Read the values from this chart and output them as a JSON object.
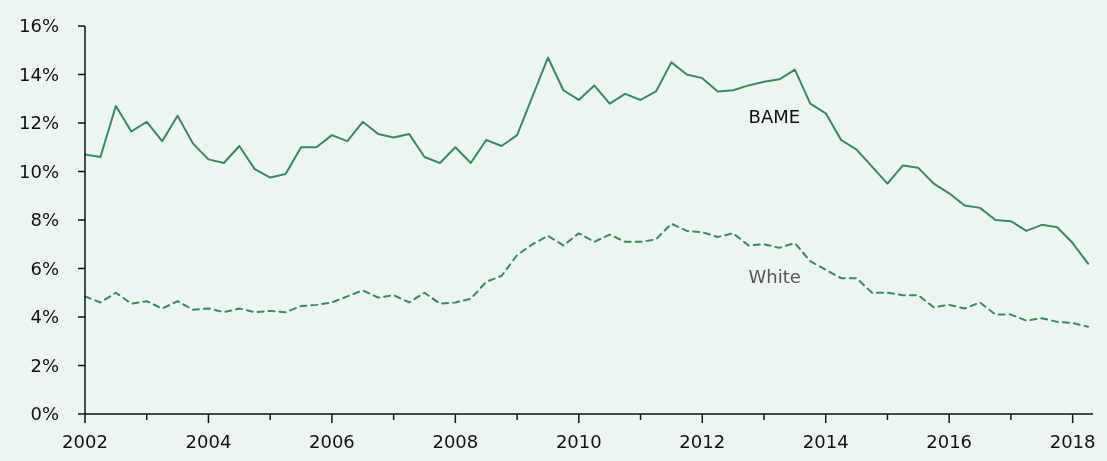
{
  "chart_data": {
    "type": "line",
    "x": [
      2002,
      2002.25,
      2002.5,
      2002.75,
      2003,
      2003.25,
      2003.5,
      2003.75,
      2004,
      2004.25,
      2004.5,
      2004.75,
      2005,
      2005.25,
      2005.5,
      2005.75,
      2006,
      2006.25,
      2006.5,
      2006.75,
      2007,
      2007.25,
      2007.5,
      2007.75,
      2008,
      2008.25,
      2008.5,
      2008.75,
      2009,
      2009.25,
      2009.5,
      2009.75,
      2010,
      2010.25,
      2010.5,
      2010.75,
      2011,
      2011.25,
      2011.5,
      2011.75,
      2012,
      2012.25,
      2012.5,
      2012.75,
      2013,
      2013.25,
      2013.5,
      2013.75,
      2014,
      2014.25,
      2014.5,
      2014.75,
      2015,
      2015.25,
      2015.5,
      2015.75,
      2016,
      2016.25,
      2016.5,
      2016.75,
      2017,
      2017.25,
      2017.5,
      2017.75,
      2018,
      2018.25
    ],
    "series": [
      {
        "name": "BAME",
        "color": "#3a8a5e",
        "line_style": "solid",
        "values": [
          10.7,
          10.6,
          12.7,
          11.65,
          12.05,
          11.25,
          12.3,
          11.15,
          10.5,
          10.35,
          11.05,
          10.1,
          9.75,
          9.9,
          11.0,
          11.0,
          11.5,
          11.25,
          12.05,
          11.55,
          11.4,
          11.55,
          10.6,
          10.35,
          11.0,
          10.35,
          11.3,
          11.05,
          11.5,
          13.1,
          14.7,
          13.35,
          12.95,
          13.55,
          12.8,
          13.2,
          12.95,
          13.3,
          14.5,
          14.0,
          13.85,
          13.3,
          13.35,
          13.55,
          13.7,
          13.8,
          14.2,
          12.8,
          12.4,
          11.3,
          10.9,
          10.2,
          9.5,
          10.25,
          10.15,
          9.5,
          9.1,
          8.6,
          8.5,
          8.0,
          7.95,
          7.55,
          7.8,
          7.7,
          7.05,
          6.2
        ]
      },
      {
        "name": "White",
        "color": "#3a8a5e",
        "line_style": "dashed",
        "values": [
          4.85,
          4.6,
          5.0,
          4.55,
          4.65,
          4.35,
          4.65,
          4.3,
          4.35,
          4.2,
          4.35,
          4.2,
          4.25,
          4.2,
          4.45,
          4.5,
          4.6,
          4.85,
          5.1,
          4.8,
          4.9,
          4.6,
          5.0,
          4.55,
          4.6,
          4.75,
          5.45,
          5.7,
          6.55,
          7.0,
          7.35,
          6.95,
          7.45,
          7.1,
          7.4,
          7.1,
          7.1,
          7.2,
          7.85,
          7.55,
          7.5,
          7.3,
          7.45,
          6.95,
          7.0,
          6.85,
          7.05,
          6.3,
          5.95,
          5.6,
          5.6,
          5.0,
          5.0,
          4.9,
          4.9,
          4.4,
          4.5,
          4.35,
          4.6,
          4.1,
          4.1,
          3.85,
          3.95,
          3.8,
          3.75,
          3.6
        ]
      }
    ],
    "xlim": [
      2002,
      2018.33
    ],
    "xticks": [
      2002,
      {
        "value": 2003,
        "label": null
      },
      2004,
      {
        "value": 2005,
        "label": null
      },
      2006,
      {
        "value": 2007,
        "label": null
      },
      2008,
      {
        "value": 2009,
        "label": null
      },
      2010,
      {
        "value": 2011,
        "label": null
      },
      2012,
      {
        "value": 2013,
        "label": null
      },
      2014,
      {
        "value": 2015,
        "label": null
      },
      2016,
      {
        "value": 2017,
        "label": null
      },
      2018
    ],
    "ylim": [
      0,
      16
    ],
    "yticks": [
      {
        "value": 0,
        "label": "0%"
      },
      {
        "value": 2,
        "label": "2%"
      },
      {
        "value": 4,
        "label": "4%"
      },
      {
        "value": 6,
        "label": "6%"
      },
      {
        "value": 8,
        "label": "8%"
      },
      {
        "value": 10,
        "label": "10%"
      },
      {
        "value": 12,
        "label": "12%"
      },
      {
        "value": 14,
        "label": "14%"
      },
      {
        "value": 16,
        "label": "16%"
      }
    ],
    "grid": false,
    "legend": false,
    "marker": "none"
  }
}
